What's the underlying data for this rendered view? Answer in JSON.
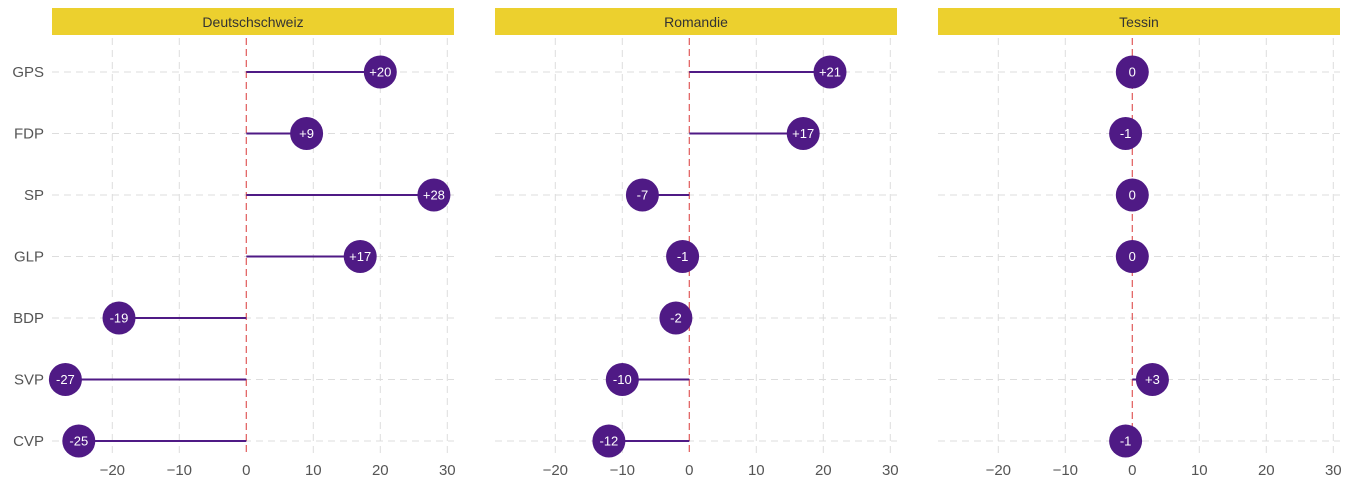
{
  "chart_data": {
    "type": "lollipop",
    "categories": [
      "GPS",
      "FDP",
      "SP",
      "GLP",
      "BDP",
      "SVP",
      "CVP"
    ],
    "xticks": [
      -20,
      -10,
      0,
      10,
      20,
      30
    ],
    "xlim": [
      -29,
      31
    ],
    "reference_line": 0,
    "grid": true,
    "colors": {
      "header": "#ecd02e",
      "dot": "#4f1a85",
      "zero_line": "#e05a5a",
      "grid": "#dddddd"
    },
    "panels": [
      {
        "title": "Deutschschweiz",
        "values": [
          20,
          9,
          28,
          17,
          -19,
          -27,
          -25
        ],
        "labels": [
          "+20",
          "+9",
          "+28",
          "+17",
          "-19",
          "-27",
          "-25"
        ]
      },
      {
        "title": "Romandie",
        "values": [
          21,
          17,
          -7,
          -1,
          -2,
          -10,
          -12
        ],
        "labels": [
          "+21",
          "+17",
          "-7",
          "-1",
          "-2",
          "-10",
          "-12"
        ]
      },
      {
        "title": "Tessin",
        "values": [
          0,
          -1,
          0,
          0,
          null,
          3,
          -1
        ],
        "labels": [
          "0",
          "-1",
          "0",
          "0",
          "",
          "+3",
          "-1"
        ]
      }
    ]
  }
}
